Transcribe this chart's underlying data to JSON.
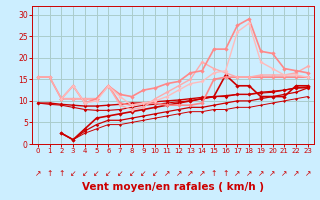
{
  "bg_color": "#cceeff",
  "grid_color": "#aacccc",
  "xlabel": "Vent moyen/en rafales ( km/h )",
  "xlabel_color": "#cc0000",
  "xlabel_fontsize": 7.5,
  "tick_color": "#cc0000",
  "xlim": [
    -0.5,
    23.5
  ],
  "ylim": [
    0,
    32
  ],
  "yticks": [
    0,
    5,
    10,
    15,
    20,
    25,
    30
  ],
  "xticks": [
    0,
    1,
    2,
    3,
    4,
    5,
    6,
    7,
    8,
    9,
    10,
    11,
    12,
    13,
    14,
    15,
    16,
    17,
    18,
    19,
    20,
    21,
    22,
    23
  ],
  "lines": [
    {
      "x": [
        0,
        1,
        2,
        3,
        4,
        5,
        6,
        7,
        8,
        9,
        10,
        11,
        12,
        13,
        14,
        15,
        16,
        17,
        18,
        19,
        20,
        21,
        22,
        23
      ],
      "y": [
        9.5,
        9.5,
        9.2,
        9.0,
        8.8,
        8.8,
        9.0,
        9.2,
        9.5,
        9.5,
        9.8,
        10.0,
        10.2,
        10.5,
        10.8,
        11.0,
        11.2,
        11.5,
        11.5,
        12.0,
        12.2,
        12.5,
        13.0,
        13.2
      ],
      "color": "#cc0000",
      "lw": 1.0,
      "marker": "D",
      "ms": 2.0
    },
    {
      "x": [
        0,
        1,
        2,
        3,
        4,
        5,
        6,
        7,
        8,
        9,
        10,
        11,
        12,
        13,
        14,
        15,
        16,
        17,
        18,
        19,
        20,
        21,
        22,
        23
      ],
      "y": [
        9.5,
        9.2,
        9.0,
        8.5,
        8.0,
        7.8,
        7.8,
        8.0,
        8.5,
        9.0,
        9.2,
        9.5,
        9.8,
        10.0,
        10.5,
        11.0,
        11.0,
        11.5,
        11.5,
        11.8,
        12.0,
        12.5,
        13.0,
        13.0
      ],
      "color": "#cc0000",
      "lw": 0.8,
      "marker": "D",
      "ms": 1.8
    },
    {
      "x": [
        2,
        3,
        4,
        5,
        6,
        7,
        8,
        9,
        10,
        11,
        12,
        13,
        14,
        15,
        16,
        17,
        18,
        19,
        20,
        21,
        22,
        23
      ],
      "y": [
        2.5,
        1.0,
        3.5,
        6.0,
        6.5,
        7.0,
        7.5,
        8.0,
        8.5,
        9.0,
        9.5,
        10.0,
        10.5,
        11.0,
        16.0,
        13.5,
        13.5,
        11.0,
        11.0,
        11.0,
        13.5,
        13.5
      ],
      "color": "#cc0000",
      "lw": 1.2,
      "marker": "D",
      "ms": 2.2
    },
    {
      "x": [
        2,
        3,
        4,
        5,
        6,
        7,
        8,
        9,
        10,
        11,
        12,
        13,
        14,
        15,
        16,
        17,
        18,
        19,
        20,
        21,
        22,
        23
      ],
      "y": [
        2.5,
        1.0,
        3.0,
        4.5,
        5.5,
        5.5,
        6.0,
        6.5,
        7.0,
        7.5,
        8.0,
        8.5,
        8.5,
        9.0,
        9.5,
        10.0,
        10.0,
        10.5,
        11.0,
        11.5,
        12.0,
        13.0
      ],
      "color": "#cc0000",
      "lw": 0.9,
      "marker": "D",
      "ms": 1.8
    },
    {
      "x": [
        2,
        3,
        4,
        5,
        6,
        7,
        8,
        9,
        10,
        11,
        12,
        13,
        14,
        15,
        16,
        17,
        18,
        19,
        20,
        21,
        22,
        23
      ],
      "y": [
        2.5,
        1.0,
        2.5,
        3.5,
        4.5,
        4.5,
        5.0,
        5.5,
        6.0,
        6.5,
        7.0,
        7.5,
        7.5,
        8.0,
        8.0,
        8.5,
        8.5,
        9.0,
        9.5,
        10.0,
        10.5,
        11.0
      ],
      "color": "#cc0000",
      "lw": 0.7,
      "marker": "D",
      "ms": 1.5
    },
    {
      "x": [
        0,
        1,
        2,
        3,
        4,
        5,
        6,
        7,
        8,
        9,
        10,
        11,
        12,
        13,
        14,
        15,
        16,
        17,
        18,
        19,
        20,
        21,
        22,
        23
      ],
      "y": [
        15.5,
        15.5,
        10.5,
        10.5,
        10.5,
        10.5,
        13.5,
        9.5,
        9.0,
        9.5,
        9.5,
        9.0,
        9.0,
        9.0,
        9.5,
        15.0,
        15.5,
        15.5,
        15.5,
        15.5,
        15.5,
        15.5,
        15.5,
        15.5
      ],
      "color": "#ff8888",
      "lw": 1.2,
      "marker": "D",
      "ms": 2.2
    },
    {
      "x": [
        0,
        1,
        2,
        3,
        4,
        5,
        6,
        7,
        8,
        9,
        10,
        11,
        12,
        13,
        14,
        15,
        16,
        17,
        18,
        19,
        20,
        21,
        22,
        23
      ],
      "y": [
        15.5,
        15.5,
        10.5,
        10.5,
        10.5,
        10.5,
        13.5,
        9.0,
        8.0,
        8.5,
        10.5,
        12.0,
        13.5,
        15.0,
        19.0,
        17.5,
        16.5,
        15.5,
        15.5,
        16.0,
        16.0,
        16.0,
        16.5,
        18.0
      ],
      "color": "#ffaaaa",
      "lw": 1.0,
      "marker": "D",
      "ms": 2.0
    },
    {
      "x": [
        2,
        3,
        4,
        5,
        6,
        7,
        8,
        9,
        10,
        11,
        12,
        13,
        14,
        15,
        16,
        17,
        18,
        19,
        20,
        21,
        22,
        23
      ],
      "y": [
        10.5,
        13.5,
        9.5,
        10.5,
        13.5,
        11.5,
        11.0,
        12.5,
        13.0,
        14.0,
        14.5,
        16.5,
        17.0,
        22.0,
        22.0,
        27.5,
        29.0,
        21.5,
        21.0,
        17.5,
        17.0,
        16.5
      ],
      "color": "#ff8888",
      "lw": 1.2,
      "marker": "D",
      "ms": 2.2
    },
    {
      "x": [
        2,
        3,
        4,
        5,
        6,
        7,
        8,
        9,
        10,
        11,
        12,
        13,
        14,
        15,
        16,
        17,
        18,
        19,
        20,
        21,
        22,
        23
      ],
      "y": [
        10.5,
        13.5,
        9.5,
        10.0,
        13.5,
        11.0,
        9.0,
        9.5,
        10.0,
        11.0,
        12.5,
        14.0,
        14.5,
        16.5,
        17.0,
        26.0,
        28.0,
        19.0,
        17.5,
        16.0,
        16.0,
        15.5
      ],
      "color": "#ffbbbb",
      "lw": 1.0,
      "marker": "D",
      "ms": 2.0
    }
  ],
  "wind_arrows": [
    "↗",
    "↑",
    "↑",
    "↙",
    "↙",
    "↙",
    "↙",
    "↙",
    "↙",
    "↙",
    "↙",
    "↗",
    "↗",
    "↗",
    "↗",
    "↑",
    "↑",
    "↗",
    "↗",
    "↗",
    "↗",
    "↗",
    "↗",
    "↗"
  ]
}
